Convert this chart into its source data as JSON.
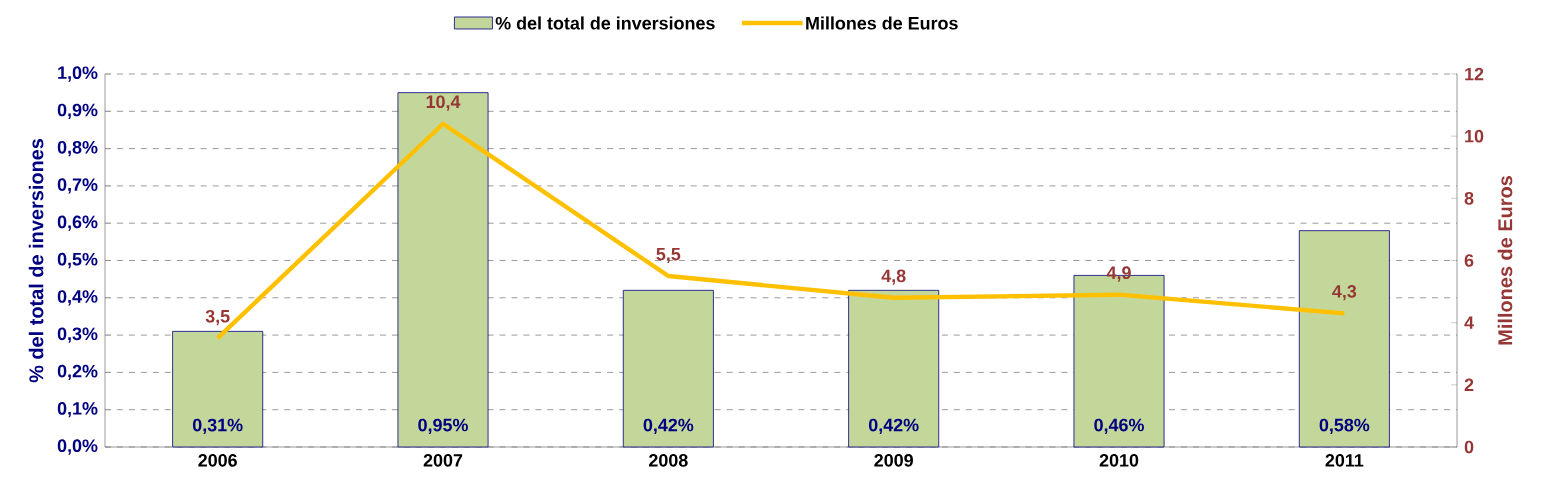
{
  "chart_data": {
    "type": "bar",
    "categories": [
      "2006",
      "2007",
      "2008",
      "2009",
      "2010",
      "2011"
    ],
    "ylabel": "% del total de inversiones",
    "y2label": "Millones de Euros",
    "ylim": [
      0,
      1.0
    ],
    "yticks": [
      {
        "value": 0,
        "label": "0,0%"
      },
      {
        "value": 0.1,
        "label": "0,1%"
      },
      {
        "value": 0.2,
        "label": "0,2%"
      },
      {
        "value": 0.3,
        "label": "0,3%"
      },
      {
        "value": 0.4,
        "label": "0,4%"
      },
      {
        "value": 0.5,
        "label": "0,5%"
      },
      {
        "value": 0.6,
        "label": "0,6%"
      },
      {
        "value": 0.7,
        "label": "0,7%"
      },
      {
        "value": 0.8,
        "label": "0,8%"
      },
      {
        "value": 0.9,
        "label": "0,9%"
      },
      {
        "value": 1.0,
        "label": "1,0%"
      }
    ],
    "y2lim": [
      0,
      12
    ],
    "y2ticks": [
      0,
      2,
      4,
      6,
      8,
      10,
      12
    ],
    "grid": "y",
    "legend": "top",
    "series": [
      {
        "name": "% del total de inversiones",
        "color": "#c4d79b",
        "values": [
          0.31,
          0.95,
          0.42,
          0.42,
          0.46,
          0.58
        ],
        "value_labels": [
          "0,31%",
          "0,95%",
          "0,42%",
          "0,42%",
          "0,46%",
          "0,58%"
        ]
      },
      {
        "name": "Millones de Euros",
        "type": "line",
        "axis": "y2",
        "color": "#ffc000",
        "values": [
          3.5,
          10.4,
          5.5,
          4.8,
          4.9,
          4.3
        ],
        "value_labels": [
          "3,5",
          "10,4",
          "5,5",
          "4,8",
          "4,9",
          "4,3"
        ]
      }
    ]
  }
}
